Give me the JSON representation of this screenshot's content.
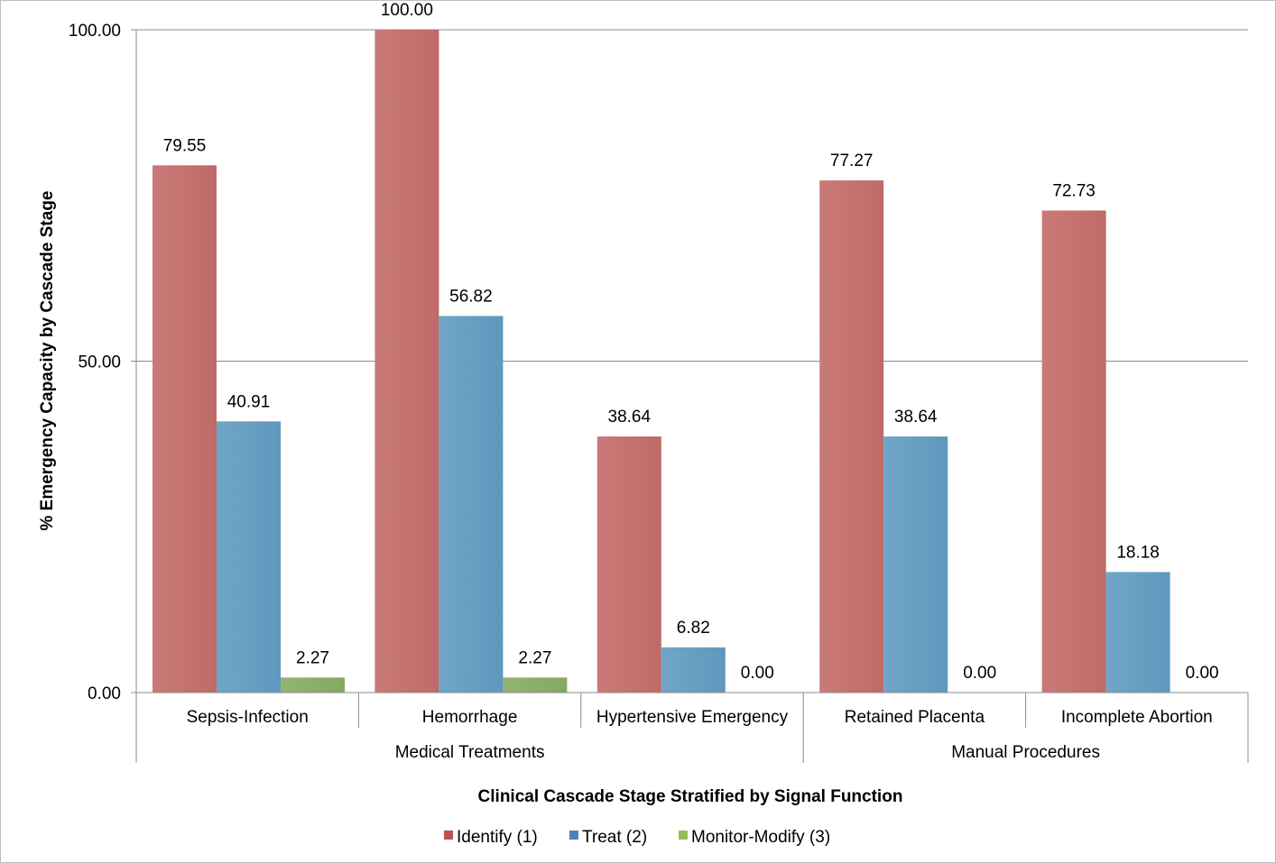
{
  "chart_data": {
    "type": "bar",
    "xlabel": "Clinical Cascade Stage Stratified by Signal Function",
    "ylabel": "% Emergency Capacity by Cascade Stage",
    "ylim": [
      0,
      100
    ],
    "yticks": [
      "0.00",
      "50.00",
      "100.00"
    ],
    "grid": true,
    "legend_position": "bottom",
    "categories": [
      "Sepsis-Infection",
      "Hemorrhage",
      "Hypertensive Emergency",
      "Retained Placenta",
      "Incomplete Abortion"
    ],
    "groups": [
      {
        "label": "Medical Treatments",
        "span": 3
      },
      {
        "label": "Manual Procedures",
        "span": 2
      }
    ],
    "series": [
      {
        "name": "Identify (1)",
        "color": "#c0504d",
        "values": [
          79.55,
          100.0,
          38.64,
          77.27,
          72.73
        ],
        "labels": [
          "79.55",
          "100.00",
          "38.64",
          "77.27",
          "72.73"
        ]
      },
      {
        "name": "Treat (2)",
        "color": "#4f81bd",
        "values": [
          40.91,
          56.82,
          6.82,
          38.64,
          18.18
        ],
        "labels": [
          "40.91",
          "56.82",
          "6.82",
          "38.64",
          "18.18"
        ]
      },
      {
        "name": "Monitor-Modify (3)",
        "color": "#9bbb59",
        "values": [
          2.27,
          2.27,
          0.0,
          0.0,
          0.0
        ],
        "labels": [
          "2.27",
          "2.27",
          "0.00",
          "0.00",
          "0.00"
        ]
      }
    ]
  }
}
